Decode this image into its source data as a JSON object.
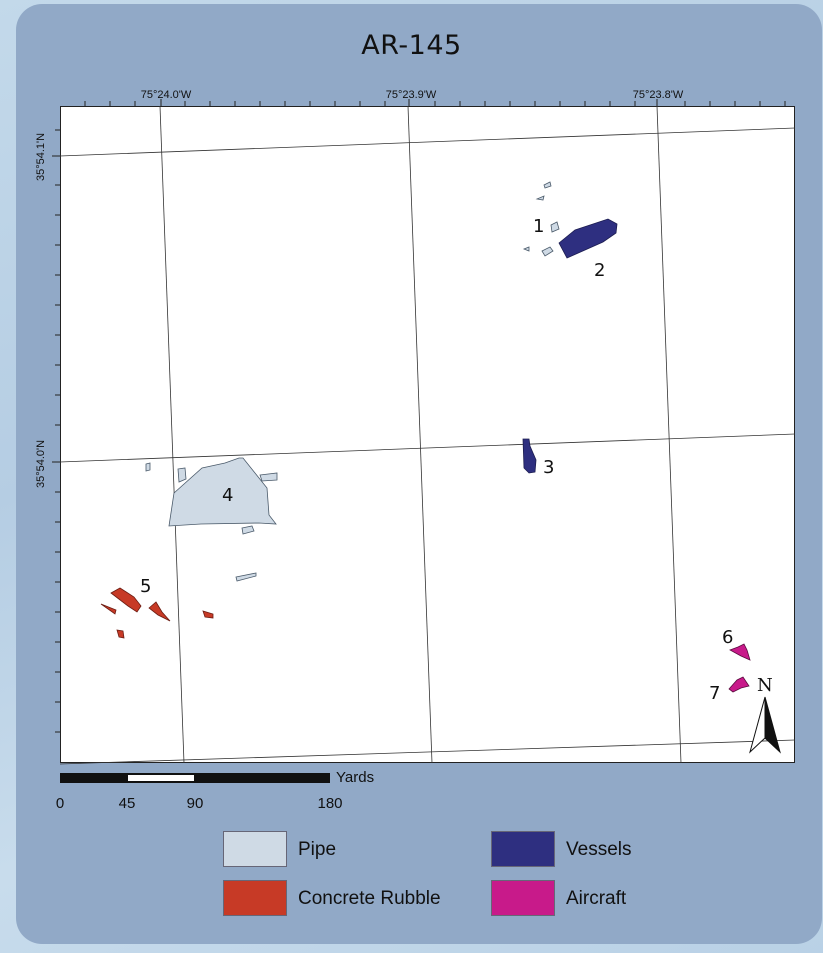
{
  "title": "AR-145",
  "longitude_labels": [
    "75°24.0'W",
    "75°23.9'W",
    "75°23.8'W"
  ],
  "latitude_labels": [
    "35°54.1'N",
    "35°54.0'N"
  ],
  "scale_bar": {
    "unit": "Yards",
    "ticks": [
      "0",
      "45",
      "90",
      "180"
    ]
  },
  "north_arrow": {
    "letter": "N"
  },
  "sites": [
    {
      "id": "1",
      "category": "Pipe"
    },
    {
      "id": "2",
      "category": "Vessels"
    },
    {
      "id": "3",
      "category": "Vessels"
    },
    {
      "id": "4",
      "category": "Pipe"
    },
    {
      "id": "5",
      "category": "Concrete Rubble"
    },
    {
      "id": "6",
      "category": "Aircraft"
    },
    {
      "id": "7",
      "category": "Aircraft"
    }
  ],
  "legend": [
    {
      "label": "Pipe",
      "color": "#cfdae5"
    },
    {
      "label": "Vessels",
      "color": "#2e2f80"
    },
    {
      "label": "Concrete Rubble",
      "color": "#c73a26"
    },
    {
      "label": "Aircraft",
      "color": "#c81a8a"
    }
  ]
}
